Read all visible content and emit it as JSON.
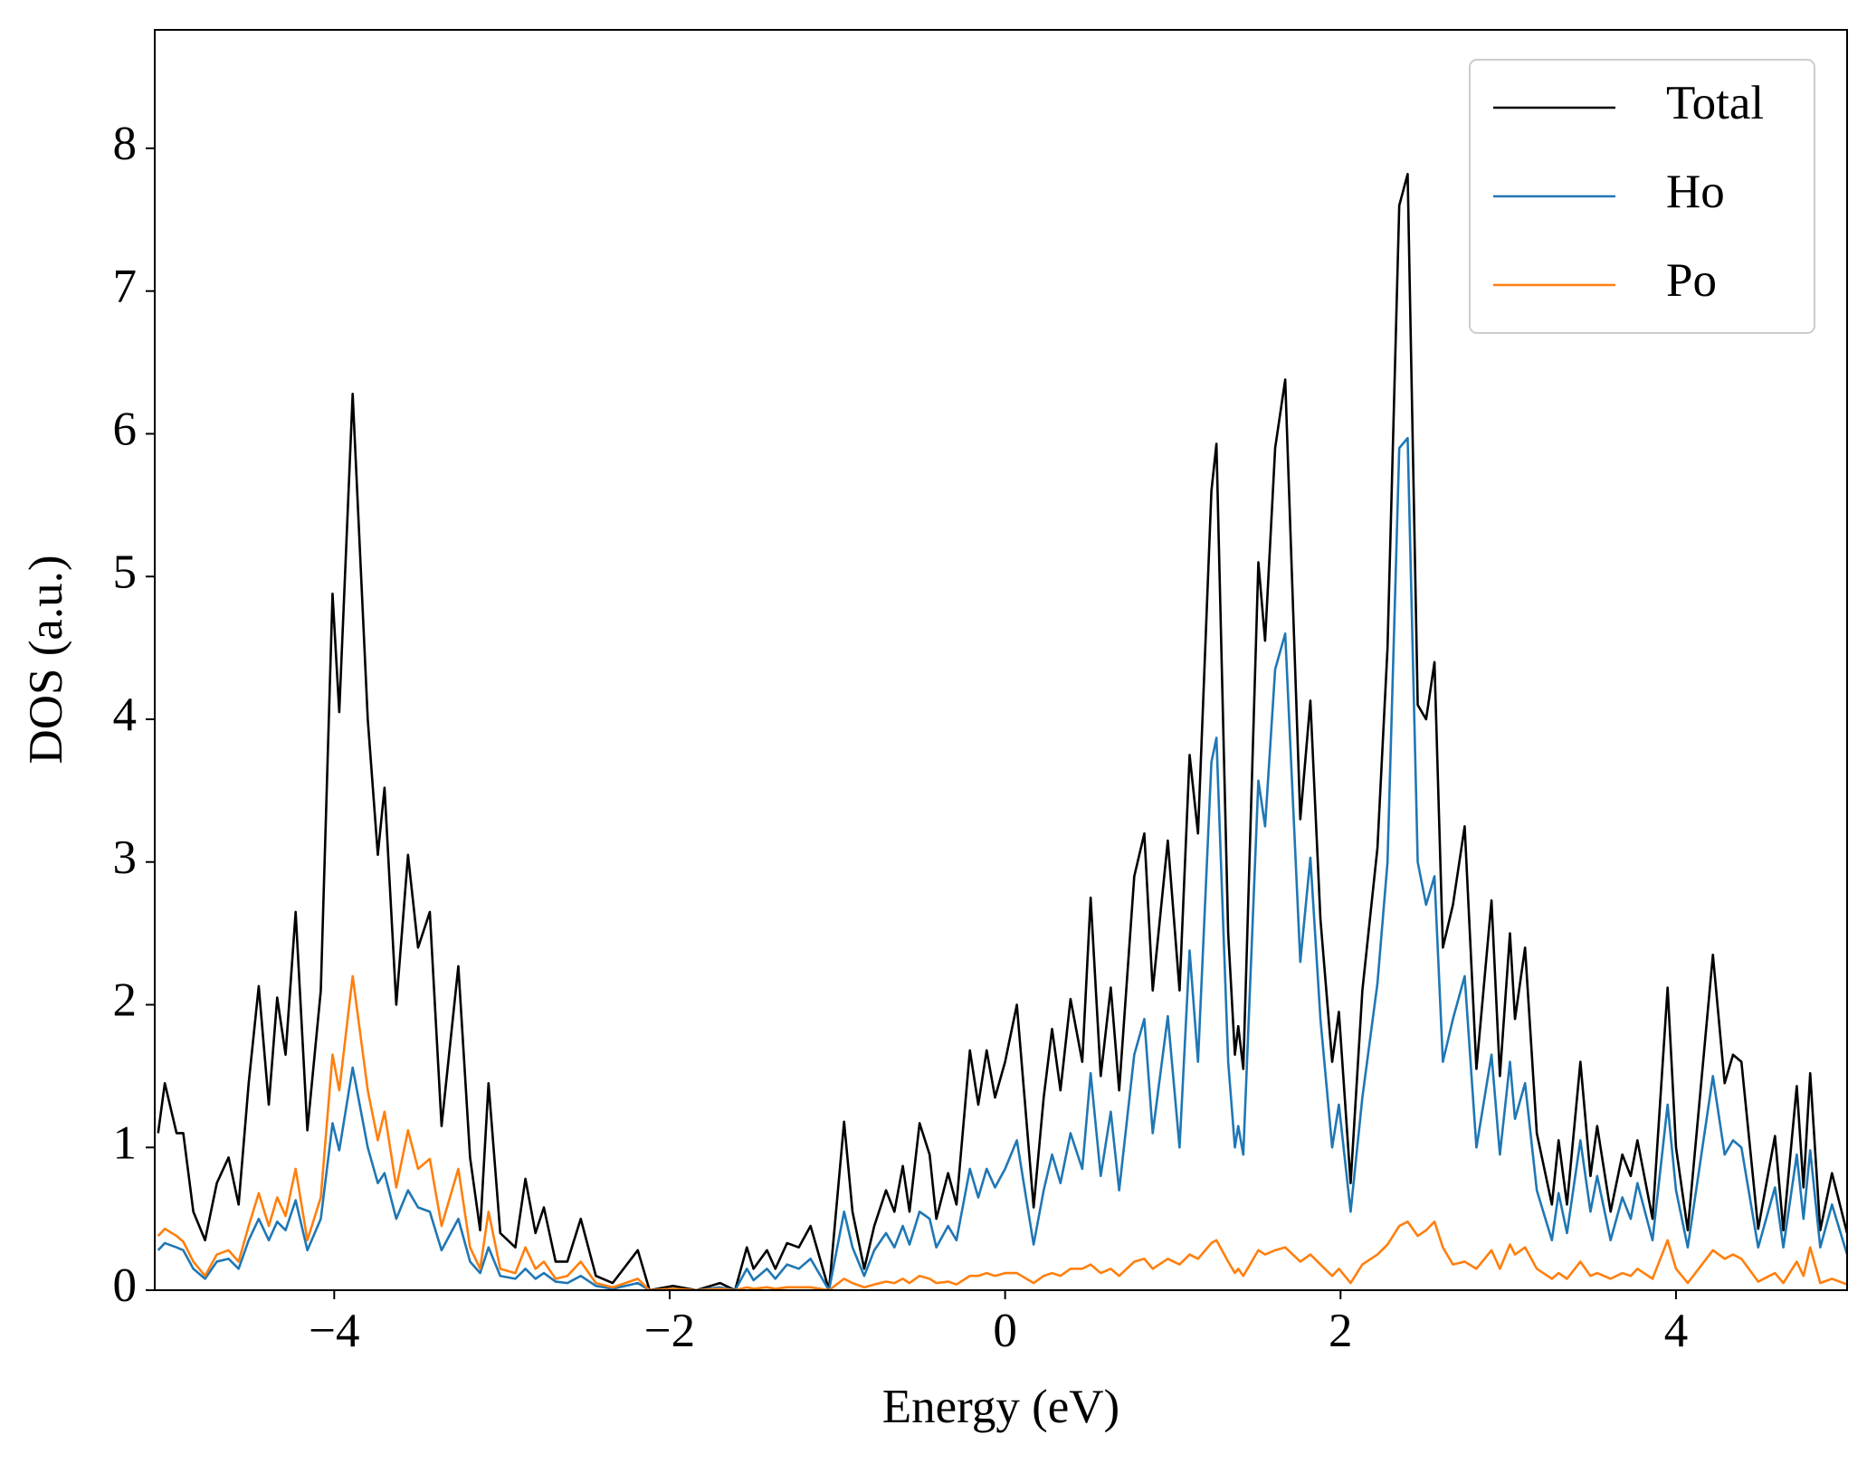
{
  "chart_data": {
    "type": "line",
    "xlabel": "Energy (eV)",
    "ylabel": "DOS (a.u.)",
    "xlim": [
      -5.07,
      5.02
    ],
    "ylim": [
      0,
      8.83
    ],
    "xticks": [
      {
        "value": -4,
        "label": "−4"
      },
      {
        "value": -2,
        "label": "−2"
      },
      0,
      2,
      4
    ],
    "yticks": [
      0,
      1,
      2,
      3,
      4,
      5,
      6,
      7,
      8
    ],
    "legend": "upper right",
    "grid": false,
    "x": [
      -5.05,
      -5.01,
      -4.94,
      -4.9,
      -4.84,
      -4.77,
      -4.7,
      -4.63,
      -4.57,
      -4.51,
      -4.45,
      -4.39,
      -4.34,
      -4.29,
      -4.23,
      -4.16,
      -4.08,
      -4.01,
      -3.97,
      -3.89,
      -3.8,
      -3.74,
      -3.7,
      -3.63,
      -3.56,
      -3.5,
      -3.43,
      -3.36,
      -3.26,
      -3.19,
      -3.13,
      -3.08,
      -3.01,
      -2.92,
      -2.86,
      -2.8,
      -2.75,
      -2.68,
      -2.61,
      -2.53,
      -2.44,
      -2.34,
      -2.19,
      -2.12,
      -1.98,
      -1.84,
      -1.7,
      -1.61,
      -1.54,
      -1.5,
      -1.42,
      -1.37,
      -1.3,
      -1.23,
      -1.16,
      -1.05,
      -0.96,
      -0.91,
      -0.84,
      -0.78,
      -0.71,
      -0.66,
      -0.61,
      -0.57,
      -0.51,
      -0.45,
      -0.41,
      -0.34,
      -0.29,
      -0.21,
      -0.16,
      -0.11,
      -0.06,
      0.0,
      0.07,
      0.17,
      0.23,
      0.28,
      0.33,
      0.39,
      0.46,
      0.51,
      0.57,
      0.63,
      0.68,
      0.77,
      0.83,
      0.88,
      0.97,
      1.04,
      1.1,
      1.15,
      1.23,
      1.26,
      1.33,
      1.37,
      1.39,
      1.42,
      1.51,
      1.55,
      1.61,
      1.67,
      1.76,
      1.82,
      1.88,
      1.95,
      1.99,
      2.06,
      2.13,
      2.22,
      2.28,
      2.35,
      2.4,
      2.46,
      2.51,
      2.56,
      2.61,
      2.67,
      2.74,
      2.81,
      2.9,
      2.95,
      3.01,
      3.04,
      3.1,
      3.17,
      3.26,
      3.3,
      3.35,
      3.43,
      3.49,
      3.53,
      3.61,
      3.68,
      3.73,
      3.77,
      3.86,
      3.95,
      4.0,
      4.07,
      4.22,
      4.29,
      4.34,
      4.39,
      4.49,
      4.59,
      4.64,
      4.72,
      4.76,
      4.8,
      4.86,
      4.93,
      5.02
    ],
    "series": [
      {
        "name": "Total",
        "color": "#000000",
        "values": [
          1.1,
          1.45,
          1.1,
          1.1,
          0.55,
          0.35,
          0.75,
          0.93,
          0.6,
          1.45,
          2.13,
          1.3,
          2.05,
          1.65,
          2.65,
          1.12,
          2.1,
          4.88,
          4.05,
          6.28,
          4.0,
          3.05,
          3.52,
          2.0,
          3.05,
          2.4,
          2.65,
          1.15,
          2.27,
          0.93,
          0.42,
          1.45,
          0.4,
          0.3,
          0.78,
          0.4,
          0.58,
          0.2,
          0.2,
          0.5,
          0.1,
          0.05,
          0.28,
          0.0,
          0.03,
          0.0,
          0.05,
          0.0,
          0.3,
          0.15,
          0.28,
          0.15,
          0.33,
          0.3,
          0.45,
          0.0,
          1.18,
          0.55,
          0.15,
          0.45,
          0.7,
          0.55,
          0.87,
          0.55,
          1.17,
          0.95,
          0.5,
          0.82,
          0.6,
          1.68,
          1.3,
          1.68,
          1.35,
          1.6,
          2.0,
          0.58,
          1.35,
          1.83,
          1.4,
          2.04,
          1.6,
          2.75,
          1.5,
          2.12,
          1.4,
          2.9,
          3.2,
          2.1,
          3.15,
          2.1,
          3.75,
          3.2,
          5.6,
          5.93,
          2.5,
          1.65,
          1.85,
          1.55,
          5.1,
          4.55,
          5.9,
          6.38,
          3.3,
          4.13,
          2.6,
          1.6,
          1.95,
          0.75,
          2.1,
          3.1,
          4.5,
          7.6,
          7.82,
          4.1,
          4.0,
          4.4,
          2.4,
          2.7,
          3.25,
          1.55,
          2.73,
          1.5,
          2.5,
          1.9,
          2.4,
          1.1,
          0.6,
          1.05,
          0.6,
          1.6,
          0.8,
          1.15,
          0.55,
          0.95,
          0.8,
          1.05,
          0.5,
          2.12,
          1.0,
          0.42,
          2.35,
          1.45,
          1.65,
          1.6,
          0.43,
          1.08,
          0.42,
          1.43,
          0.72,
          1.52,
          0.42,
          0.82,
          0.4
        ]
      },
      {
        "name": "Ho",
        "color": "#1f77b4",
        "values": [
          0.28,
          0.33,
          0.3,
          0.28,
          0.15,
          0.08,
          0.2,
          0.22,
          0.15,
          0.35,
          0.5,
          0.35,
          0.48,
          0.42,
          0.63,
          0.28,
          0.5,
          1.17,
          0.98,
          1.56,
          1.0,
          0.75,
          0.82,
          0.5,
          0.7,
          0.58,
          0.55,
          0.28,
          0.5,
          0.2,
          0.12,
          0.3,
          0.1,
          0.08,
          0.15,
          0.08,
          0.12,
          0.06,
          0.05,
          0.1,
          0.03,
          0.01,
          0.05,
          0.0,
          0.01,
          0.0,
          0.02,
          0.0,
          0.15,
          0.07,
          0.15,
          0.08,
          0.18,
          0.15,
          0.22,
          0.0,
          0.55,
          0.3,
          0.1,
          0.28,
          0.4,
          0.3,
          0.45,
          0.32,
          0.55,
          0.5,
          0.3,
          0.45,
          0.35,
          0.85,
          0.65,
          0.85,
          0.72,
          0.85,
          1.05,
          0.32,
          0.7,
          0.95,
          0.75,
          1.1,
          0.85,
          1.52,
          0.8,
          1.25,
          0.7,
          1.65,
          1.9,
          1.1,
          1.92,
          1.0,
          2.38,
          1.6,
          3.7,
          3.87,
          1.6,
          1.0,
          1.15,
          0.95,
          3.57,
          3.25,
          4.35,
          4.6,
          2.3,
          3.03,
          1.9,
          1.0,
          1.3,
          0.55,
          1.35,
          2.15,
          3.0,
          5.9,
          5.97,
          3.0,
          2.7,
          2.9,
          1.6,
          1.9,
          2.2,
          1.0,
          1.65,
          0.95,
          1.6,
          1.2,
          1.45,
          0.7,
          0.35,
          0.68,
          0.4,
          1.05,
          0.55,
          0.8,
          0.35,
          0.65,
          0.5,
          0.75,
          0.35,
          1.3,
          0.7,
          0.3,
          1.5,
          0.95,
          1.05,
          1.0,
          0.3,
          0.72,
          0.3,
          0.95,
          0.5,
          0.98,
          0.3,
          0.6,
          0.25
        ]
      },
      {
        "name": "Po",
        "color": "#ff7f0e",
        "values": [
          0.38,
          0.43,
          0.38,
          0.34,
          0.2,
          0.1,
          0.25,
          0.28,
          0.2,
          0.45,
          0.68,
          0.45,
          0.65,
          0.52,
          0.85,
          0.35,
          0.65,
          1.65,
          1.4,
          2.2,
          1.4,
          1.05,
          1.25,
          0.72,
          1.12,
          0.85,
          0.92,
          0.45,
          0.85,
          0.3,
          0.15,
          0.55,
          0.15,
          0.12,
          0.3,
          0.15,
          0.2,
          0.08,
          0.1,
          0.2,
          0.05,
          0.02,
          0.08,
          0.0,
          0.01,
          0.0,
          0.01,
          0.0,
          0.02,
          0.01,
          0.02,
          0.01,
          0.02,
          0.02,
          0.02,
          0.0,
          0.08,
          0.05,
          0.02,
          0.04,
          0.06,
          0.05,
          0.08,
          0.05,
          0.1,
          0.08,
          0.05,
          0.06,
          0.04,
          0.1,
          0.1,
          0.12,
          0.1,
          0.12,
          0.12,
          0.05,
          0.1,
          0.12,
          0.1,
          0.15,
          0.15,
          0.18,
          0.12,
          0.15,
          0.1,
          0.2,
          0.22,
          0.15,
          0.22,
          0.18,
          0.25,
          0.22,
          0.33,
          0.35,
          0.2,
          0.12,
          0.15,
          0.1,
          0.28,
          0.25,
          0.28,
          0.3,
          0.2,
          0.25,
          0.18,
          0.1,
          0.15,
          0.05,
          0.18,
          0.25,
          0.32,
          0.45,
          0.48,
          0.38,
          0.42,
          0.48,
          0.3,
          0.18,
          0.2,
          0.15,
          0.28,
          0.15,
          0.32,
          0.25,
          0.3,
          0.15,
          0.08,
          0.12,
          0.08,
          0.2,
          0.1,
          0.12,
          0.08,
          0.12,
          0.1,
          0.15,
          0.08,
          0.35,
          0.15,
          0.05,
          0.28,
          0.22,
          0.25,
          0.22,
          0.06,
          0.12,
          0.05,
          0.2,
          0.1,
          0.3,
          0.05,
          0.08,
          0.04
        ]
      }
    ]
  }
}
